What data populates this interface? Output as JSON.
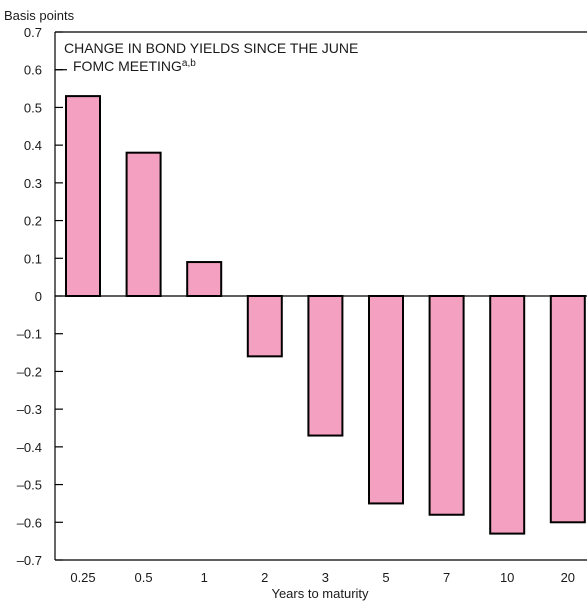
{
  "chart_data": {
    "type": "bar",
    "title_line1": "CHANGE IN BOND YIELDS SINCE THE JUNE",
    "title_line2": "FOMC MEETING",
    "title_superscript": "a,b",
    "ylabel": "Basis points",
    "xlabel": "Years to maturity",
    "categories": [
      "0.25",
      "0.5",
      "1",
      "2",
      "3",
      "5",
      "7",
      "10",
      "20"
    ],
    "values": [
      0.53,
      0.38,
      0.09,
      -0.16,
      -0.37,
      -0.55,
      -0.58,
      -0.63,
      -0.6
    ],
    "ylim": [
      -0.7,
      0.7
    ],
    "yticks": [
      0.7,
      0.6,
      0.5,
      0.4,
      0.3,
      0.2,
      0.1,
      0,
      -0.1,
      -0.2,
      -0.3,
      -0.4,
      -0.5,
      -0.6,
      -0.7
    ],
    "ytick_labels": [
      "0.7",
      "0.6",
      "0.5",
      "0.4",
      "0.3",
      "0.2",
      "0.1",
      "0",
      "–0.1",
      "–0.2",
      "–0.3",
      "–0.4",
      "–0.5",
      "–0.6",
      "–0.7"
    ],
    "grid": false,
    "bar_color": "#f4a0c0",
    "bar_edge_color": "#000000"
  }
}
